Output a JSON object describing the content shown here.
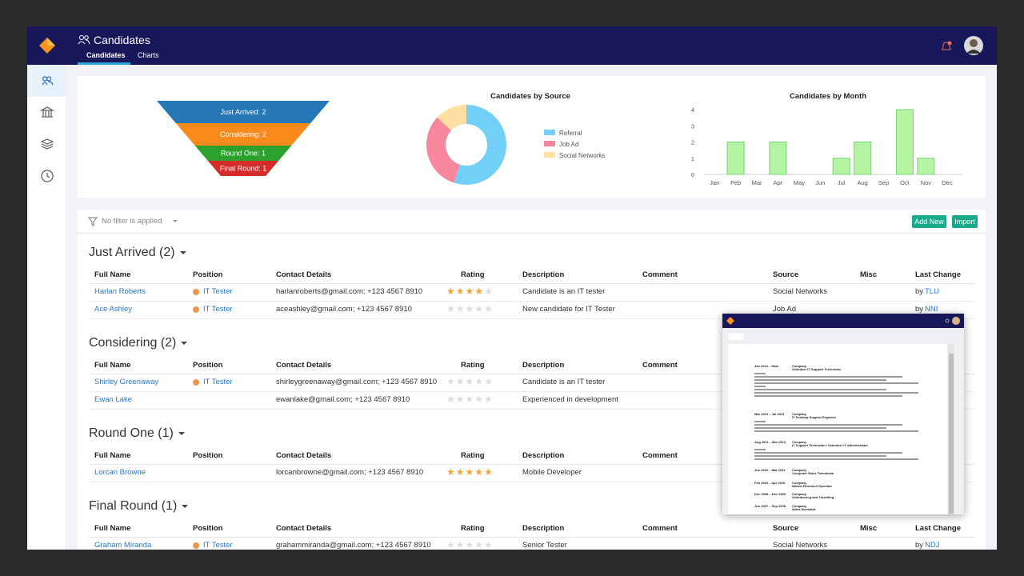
{
  "header": {
    "title": "Candidates",
    "tabs": [
      "Candidates",
      "Charts"
    ]
  },
  "chart_data": [
    {
      "type": "funnel",
      "values": [
        2,
        2,
        1,
        1
      ],
      "value_labels": [
        "Just Arrived: 2",
        "Considering: 2",
        "Round One: 1",
        "Final Round: 1"
      ],
      "colors": [
        "#2677b5",
        "#fb8a1c",
        "#2da12e",
        "#d42b2b"
      ]
    },
    {
      "type": "donut",
      "title": "Candidates by Source",
      "categories": [
        "Referral",
        "Job Ad",
        "Social Networks"
      ],
      "values": [
        55,
        32,
        13
      ],
      "colors": [
        "#72cff8",
        "#f7879c",
        "#fde1a2"
      ]
    },
    {
      "type": "bar",
      "title": "Candidates by Month",
      "categories": [
        "Jan",
        "Feb",
        "Mar",
        "Apr",
        "May",
        "Jun",
        "Jul",
        "Aug",
        "Sep",
        "Oct",
        "Nov",
        "Dec"
      ],
      "values": [
        0,
        2,
        0,
        2,
        0,
        0,
        1,
        2,
        0,
        4,
        1,
        0
      ],
      "ylim": [
        0,
        4
      ],
      "yticks": [
        0,
        1,
        2,
        3,
        4
      ],
      "color": "#b4f5a4",
      "grid": false
    }
  ],
  "toolbar": {
    "filter": "No filter is applied",
    "buttons": [
      "Add New",
      "Import"
    ]
  },
  "columns": [
    "Full Name",
    "Position",
    "Contact Details",
    "Rating",
    "Description",
    "Comment",
    "Source",
    "Misc",
    "Last Change"
  ],
  "groups": [
    {
      "title": "Just Arrived (2)",
      "rows": [
        {
          "name": "Harlan Roberts",
          "position": "IT Tester",
          "contact": "harlanroberts@gmail.com; +123 4567 8910",
          "rating": 4,
          "description": "Candidate is an IT tester",
          "source": "Social Networks",
          "last_change": {
            "prefix": "by",
            "user": "TLU"
          }
        },
        {
          "name": "Ace Ashley",
          "position": "IT Tester",
          "contact": "aceashley@gmail.com; +123 4567 8910",
          "rating": 0,
          "description": "New candidate for IT Tester",
          "source": "Job Ad",
          "last_change": {
            "prefix": "by",
            "user": "NNI"
          }
        }
      ]
    },
    {
      "title": "Considering (2)",
      "rows": [
        {
          "name": "Shirley Greenaway",
          "position": "IT Tester",
          "contact": "shirleygreenaway@gmail.com; +123 4567 8910",
          "rating": 0,
          "description": "Candidate is an IT tester"
        },
        {
          "name": "Ewan Lake",
          "contact": "ewanlake@gmail.com; +123 4567 8910",
          "rating": 0,
          "description": "Experienced in development"
        }
      ]
    },
    {
      "title": "Round One (1)",
      "rows": [
        {
          "name": "Lorcan Browne",
          "contact": "lorcanbrowne@gmail.com; +123 4567 8910",
          "rating": 5,
          "description": "Mobile Developer"
        }
      ]
    },
    {
      "title": "Final Round (1)",
      "rows": [
        {
          "name": "Graham Miranda",
          "position": "IT Tester",
          "contact": "grahammiranda@gmail.com; +123 4567 8910",
          "rating": 0,
          "description": "Senior Tester",
          "source": "Social Networks",
          "last_change": {
            "prefix": "by",
            "user": "NDJ"
          }
        }
      ]
    }
  ],
  "preview": {
    "entries": [
      {
        "date": "Jan 2014 – Date",
        "company": "Company",
        "role": "Volunteer IT Support Technician"
      },
      {
        "date": "Mar 2013 – Jul 2013",
        "company": "Company",
        "role": "IT Desktop Support Engineer"
      },
      {
        "date": "Aug 2011 – Mar 2013",
        "company": "Company",
        "role": "IT Support Technician / Volunteer IT Administrator"
      },
      {
        "date": "Jun 2010 – Mar 2011",
        "company": "Company",
        "role": "Computer Sales Technician"
      },
      {
        "date": "Feb 2010 – Apr 2010",
        "company": "Company",
        "role": "Market Research Operator"
      },
      {
        "date": "Dec 2008 – Dec 2009",
        "company": "Company",
        "role": "Volunteering and Travelling"
      },
      {
        "date": "Jun 2007 – Sep 2008",
        "company": "Company",
        "role": "Sales Assistant"
      }
    ]
  }
}
